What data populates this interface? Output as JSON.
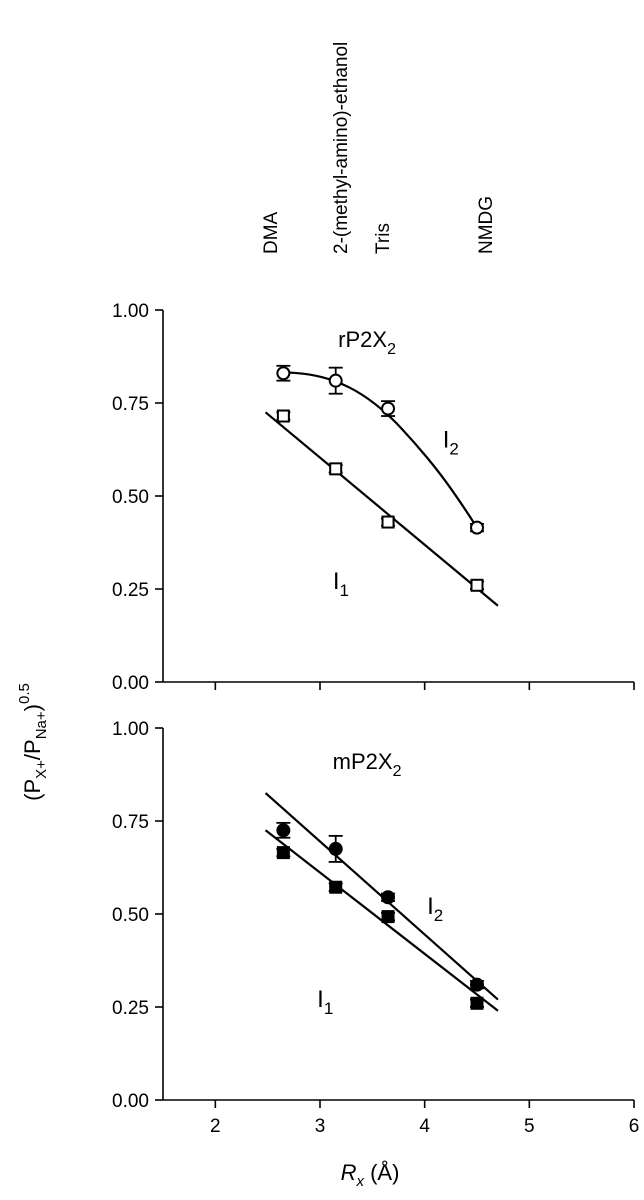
{
  "ion_labels": [
    "DMA",
    "2-(methyl-amino)-ethanol",
    "Tris",
    "NMDG"
  ],
  "y_axis_label": "(P_{X+}/P_{Na+})^{0.5}",
  "x_axis_label": "R_x (Å)",
  "chart_data": [
    {
      "type": "scatter",
      "title": "rP2X2",
      "xlim": [
        1.5,
        6
      ],
      "ylim": [
        0,
        1
      ],
      "x_ticks": [],
      "y_tick_labels": [
        "0.00",
        "0.25",
        "0.50",
        "0.75",
        "1.00"
      ],
      "series": [
        {
          "name": "I2",
          "marker": "open-circle",
          "x": [
            2.65,
            3.15,
            3.65,
            4.5
          ],
          "y": [
            0.83,
            0.81,
            0.735,
            0.415
          ],
          "err": [
            0.02,
            0.035,
            0.02,
            0.01
          ],
          "fit": "curve",
          "fit_curve": [
            [
              2.65,
              0.833
            ],
            [
              2.9,
              0.828
            ],
            [
              3.15,
              0.81
            ],
            [
              3.4,
              0.775
            ],
            [
              3.65,
              0.72
            ],
            [
              3.9,
              0.645
            ],
            [
              4.15,
              0.56
            ],
            [
              4.35,
              0.48
            ],
            [
              4.5,
              0.415
            ]
          ]
        },
        {
          "name": "I1",
          "marker": "open-square",
          "x": [
            2.65,
            3.15,
            3.65,
            4.5
          ],
          "y": [
            0.715,
            0.573,
            0.43,
            0.26
          ],
          "err": [
            0.01,
            0.01,
            0.01,
            0.01
          ],
          "fit": "line",
          "fit_line": [
            [
              2.48,
              0.725
            ],
            [
              4.7,
              0.205
            ]
          ]
        }
      ]
    },
    {
      "type": "scatter",
      "title": "mP2X2",
      "xlabel": "R_x (Å)",
      "xlim": [
        1.5,
        6
      ],
      "ylim": [
        0,
        1
      ],
      "x_ticks": [
        2,
        3,
        4,
        5,
        6
      ],
      "y_tick_labels": [
        "0.00",
        "0.25",
        "0.50",
        "0.75",
        "1.00"
      ],
      "series": [
        {
          "name": "I2",
          "marker": "filled-circle",
          "x": [
            2.65,
            3.15,
            3.65,
            4.5
          ],
          "y": [
            0.725,
            0.675,
            0.545,
            0.31
          ],
          "err": [
            0.02,
            0.035,
            0.01,
            0.01
          ],
          "fit": "line",
          "fit_line": [
            [
              2.48,
              0.825
            ],
            [
              4.7,
              0.27
            ]
          ]
        },
        {
          "name": "I1",
          "marker": "filled-square",
          "x": [
            2.65,
            3.15,
            3.65,
            4.5
          ],
          "y": [
            0.665,
            0.572,
            0.493,
            0.26
          ],
          "err": [
            0.01,
            0.01,
            0.01,
            0.01
          ],
          "fit": "line",
          "fit_line": [
            [
              2.48,
              0.725
            ],
            [
              4.7,
              0.24
            ]
          ]
        }
      ]
    }
  ],
  "annotations": {
    "top": {
      "I2": {
        "x": 4.25,
        "y": 0.63
      },
      "I1": {
        "x": 3.2,
        "y": 0.25
      }
    },
    "bottom": {
      "I2": {
        "x": 4.1,
        "y": 0.5
      },
      "I1": {
        "x": 3.05,
        "y": 0.25
      }
    }
  }
}
